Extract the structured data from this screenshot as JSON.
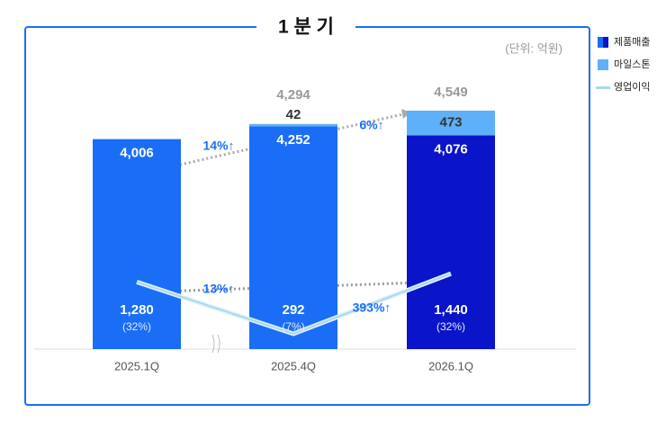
{
  "chart_data": {
    "type": "stacked-bar-line",
    "title": "1 분 기",
    "unit_note": "(단위: 억원)",
    "categories": [
      "2025.1Q",
      "2025.4Q",
      "2026.1Q"
    ],
    "ylim": [
      0,
      4600
    ],
    "series": [
      {
        "name": "제품매출",
        "type": "bar",
        "colors": [
          "#1a6ef5",
          "#1a6ef5",
          "#0a14c8"
        ],
        "values": [
          4006,
          4252,
          4076
        ],
        "value_labels": [
          "4,006",
          "4,252",
          "4,076"
        ]
      },
      {
        "name": "마일스톤",
        "type": "bar",
        "color": "#5eb0f8",
        "values": [
          null,
          42,
          473
        ]
      },
      {
        "name": "영업이익",
        "type": "line",
        "color": "#a9d8f0",
        "values": [
          1280,
          292,
          1440
        ],
        "value_labels": [
          "1,280",
          "292",
          "1,440"
        ],
        "margin_labels": [
          "(32%)",
          "(7%)",
          "(32%)"
        ]
      }
    ],
    "totals": [
      null,
      4294,
      4549
    ],
    "total_labels": [
      null,
      "4,294",
      "4,549"
    ],
    "annotations": [
      "14%↑",
      "6%↑",
      "13%↑",
      "393%↑"
    ]
  }
}
